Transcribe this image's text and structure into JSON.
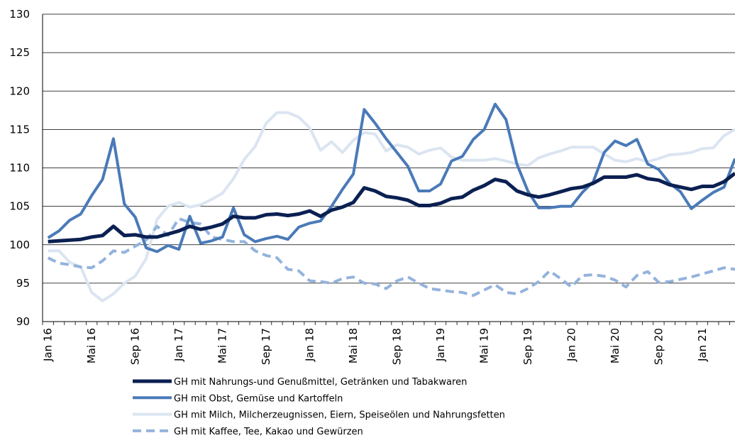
{
  "chart_data": {
    "type": "line",
    "categories": [
      "Jan 16",
      null,
      null,
      null,
      "Mai 16",
      null,
      null,
      null,
      "Sep 16",
      null,
      null,
      null,
      "Jan 17",
      null,
      null,
      null,
      "Mai 17",
      null,
      null,
      null,
      "Sep 17",
      null,
      null,
      null,
      "Jan 18",
      null,
      null,
      null,
      "Mai 18",
      null,
      null,
      null,
      "Sep 18",
      null,
      null,
      null,
      "Jan 19",
      null,
      null,
      null,
      "Mai 19",
      null,
      null,
      null,
      "Sep 19",
      null,
      null,
      null,
      "Jan 20",
      null,
      null,
      null,
      "Mai 20",
      null,
      null,
      null,
      "Sep 20",
      null,
      null,
      null,
      "Jan 21",
      null,
      null,
      null
    ],
    "series": [
      {
        "name": "GH mit Nahrungs-und Genußmittel, Getränken und Tabakwaren",
        "color": "#0b2052",
        "width": 5,
        "dash": false,
        "values": [
          100.4,
          100.5,
          100.6,
          100.7,
          101.0,
          101.2,
          102.4,
          101.2,
          101.3,
          101.0,
          101.0,
          101.4,
          101.8,
          102.4,
          102.0,
          102.3,
          102.7,
          103.7,
          103.5,
          103.5,
          103.9,
          104.0,
          103.8,
          104.0,
          104.4,
          103.7,
          104.5,
          104.9,
          105.5,
          107.4,
          107.0,
          106.3,
          106.1,
          105.8,
          105.1,
          105.1,
          105.4,
          106.0,
          106.2,
          107.1,
          107.7,
          108.5,
          108.2,
          107.0,
          106.5,
          106.2,
          106.5,
          106.9,
          107.3,
          107.5,
          108.0,
          108.8,
          108.8,
          108.8,
          109.1,
          108.6,
          108.4,
          107.8,
          107.5,
          107.2,
          107.6,
          107.6,
          108.2,
          109.3
        ]
      },
      {
        "name": "GH mit Obst, Gemüse und Kartoffeln",
        "color": "#4a7ab8",
        "width": 4,
        "dash": false,
        "values": [
          100.9,
          101.8,
          103.2,
          104.0,
          106.4,
          108.5,
          113.8,
          105.3,
          103.6,
          99.6,
          99.1,
          99.9,
          99.4,
          103.7,
          100.2,
          100.5,
          101.0,
          104.8,
          101.3,
          100.4,
          100.8,
          101.1,
          100.7,
          102.3,
          102.8,
          103.1,
          105.0,
          107.2,
          109.2,
          117.6,
          115.8,
          113.8,
          112.0,
          110.2,
          107.0,
          107.0,
          107.9,
          110.9,
          111.5,
          113.7,
          115.0,
          118.3,
          116.3,
          110.5,
          107.0,
          104.8,
          104.8,
          105.0,
          105.0,
          106.8,
          108.2,
          112.0,
          113.5,
          112.9,
          113.7,
          110.5,
          109.8,
          108.0,
          106.9,
          104.7,
          105.8,
          106.8,
          107.5,
          111.2
        ]
      },
      {
        "name": "GH mit Milch, Milcherzeugnissen, Eiern, Speiseölen und Nahrungsfetten",
        "color": "#dbe5f1",
        "width": 4,
        "dash": false,
        "values": [
          99.2,
          99.2,
          97.7,
          97.1,
          93.8,
          92.7,
          93.6,
          95.0,
          95.9,
          98.2,
          103.3,
          105.0,
          105.5,
          104.9,
          105.2,
          105.9,
          106.7,
          108.6,
          111.1,
          112.8,
          115.8,
          117.2,
          117.2,
          116.6,
          115.2,
          112.3,
          113.4,
          112.0,
          113.6,
          114.6,
          114.4,
          112.2,
          113.0,
          112.7,
          111.8,
          112.3,
          112.6,
          111.4,
          111.0,
          111.0,
          111.0,
          111.2,
          110.9,
          110.5,
          110.3,
          111.3,
          111.8,
          112.2,
          112.7,
          112.7,
          112.7,
          111.8,
          111.0,
          110.8,
          111.2,
          110.8,
          111.2,
          111.7,
          111.8,
          112.0,
          112.5,
          112.6,
          114.2,
          115.0
        ]
      },
      {
        "name": "GH mit Kaffee, Tee, Kakao und Gewürzen",
        "color": "#94b3dc",
        "width": 4,
        "dash": true,
        "values": [
          98.3,
          97.6,
          97.4,
          97.1,
          97.0,
          97.9,
          99.2,
          99.0,
          99.8,
          100.6,
          102.4,
          101.2,
          103.4,
          102.9,
          102.7,
          101.0,
          100.7,
          100.4,
          100.4,
          99.2,
          98.6,
          98.3,
          96.8,
          96.6,
          95.3,
          95.2,
          95.0,
          95.6,
          95.8,
          95.0,
          94.9,
          94.3,
          95.3,
          95.8,
          95.0,
          94.3,
          94.1,
          93.9,
          93.8,
          93.4,
          94.1,
          94.8,
          93.8,
          93.6,
          94.3,
          95.2,
          96.6,
          95.6,
          94.5,
          96.0,
          96.1,
          95.9,
          95.4,
          94.5,
          96.0,
          96.5,
          95.1,
          95.2,
          95.5,
          95.8,
          96.2,
          96.6,
          97.0,
          96.8
        ]
      }
    ],
    "ylim": [
      90,
      130
    ],
    "yticks": [
      90,
      95,
      100,
      105,
      110,
      115,
      120,
      125,
      130
    ],
    "grid": true,
    "legend": "bottom"
  }
}
